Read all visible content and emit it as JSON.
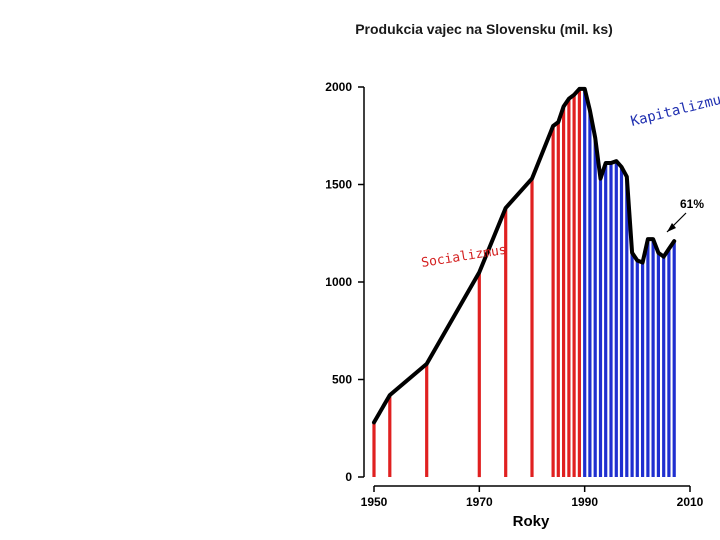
{
  "chart_data": {
    "type": "bar",
    "title": "Produkcia vajec na Slovensku (mil. ks)",
    "xlabel": "Roky",
    "ylabel": "",
    "xlim": [
      1950,
      2010
    ],
    "ylim": [
      0,
      2000
    ],
    "x_ticks": [
      "1950",
      "1970",
      "1990",
      "2010"
    ],
    "y_ticks": [
      "0",
      "500",
      "1000",
      "1500",
      "2000"
    ],
    "series": [
      {
        "name": "Socializmus",
        "color": "#e02020",
        "points": [
          {
            "x": 1950,
            "y": 280
          },
          {
            "x": 1953,
            "y": 420
          },
          {
            "x": 1960,
            "y": 580
          },
          {
            "x": 1970,
            "y": 1050
          },
          {
            "x": 1975,
            "y": 1380
          },
          {
            "x": 1980,
            "y": 1530
          },
          {
            "x": 1984,
            "y": 1800
          },
          {
            "x": 1985,
            "y": 1820
          },
          {
            "x": 1986,
            "y": 1900
          },
          {
            "x": 1987,
            "y": 1940
          },
          {
            "x": 1988,
            "y": 1960
          },
          {
            "x": 1989,
            "y": 1990
          }
        ]
      },
      {
        "name": "Kapitalizmus",
        "color": "#1f2fd0",
        "points": [
          {
            "x": 1990,
            "y": 1990
          },
          {
            "x": 1991,
            "y": 1880
          },
          {
            "x": 1992,
            "y": 1740
          },
          {
            "x": 1993,
            "y": 1530
          },
          {
            "x": 1994,
            "y": 1610
          },
          {
            "x": 1995,
            "y": 1610
          },
          {
            "x": 1996,
            "y": 1620
          },
          {
            "x": 1997,
            "y": 1590
          },
          {
            "x": 1998,
            "y": 1540
          },
          {
            "x": 1999,
            "y": 1150
          },
          {
            "x": 2000,
            "y": 1110
          },
          {
            "x": 2001,
            "y": 1100
          },
          {
            "x": 2002,
            "y": 1220
          },
          {
            "x": 2003,
            "y": 1220
          },
          {
            "x": 2004,
            "y": 1150
          },
          {
            "x": 2005,
            "y": 1130
          },
          {
            "x": 2006,
            "y": 1170
          },
          {
            "x": 2007,
            "y": 1210
          }
        ]
      }
    ],
    "annotations": [
      {
        "text": "Socializmus",
        "label_color": "#d42020"
      },
      {
        "text": "Kapitalizmus",
        "label_color": "#1f2fb0"
      },
      {
        "text": "61%",
        "arrow_to": {
          "x": 2007,
          "y": 1210
        }
      }
    ]
  }
}
